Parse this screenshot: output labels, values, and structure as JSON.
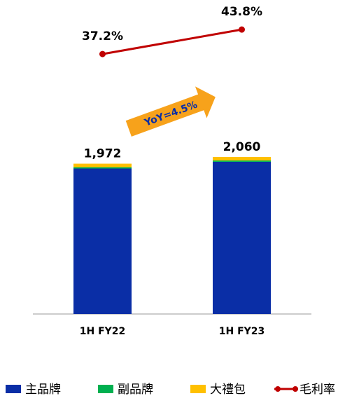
{
  "chart_data": {
    "type": "bar",
    "categories": [
      "1H FY22",
      "1H FY23"
    ],
    "stacked": true,
    "series": [
      {
        "name": "主品牌",
        "color": "#0a2ea6",
        "values": [
          1908,
          1996
        ]
      },
      {
        "name": "副品牌",
        "color": "#00b050",
        "values": [
          18,
          18
        ]
      },
      {
        "name": "大禮包",
        "color": "#ffc000",
        "values": [
          46,
          46
        ]
      },
      {
        "name": "毛利率",
        "type": "line",
        "axis": "y2",
        "color": "#c00000",
        "values": [
          37.2,
          43.8
        ],
        "value_labels": [
          "37.2%",
          "43.8%"
        ]
      }
    ],
    "total_labels": [
      "1,972",
      "2,060"
    ],
    "annotation": "YoY=4.5%",
    "ylim": [
      0,
      4000
    ],
    "y2lim": [
      -32.8,
      49.3
    ],
    "legend": "bottom"
  }
}
